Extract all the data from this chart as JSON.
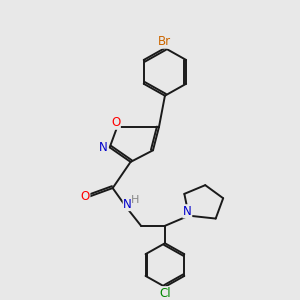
{
  "background_color": "#e8e8e8",
  "bond_color": "#1a1a1a",
  "atom_colors": {
    "O": "#ff0000",
    "N": "#0000cc",
    "Br": "#cc6600",
    "Cl": "#008800",
    "H": "#888888",
    "C": "#1a1a1a"
  },
  "font_size": 8.5,
  "line_width": 1.4,
  "figsize": [
    3.0,
    3.0
  ],
  "dpi": 100
}
